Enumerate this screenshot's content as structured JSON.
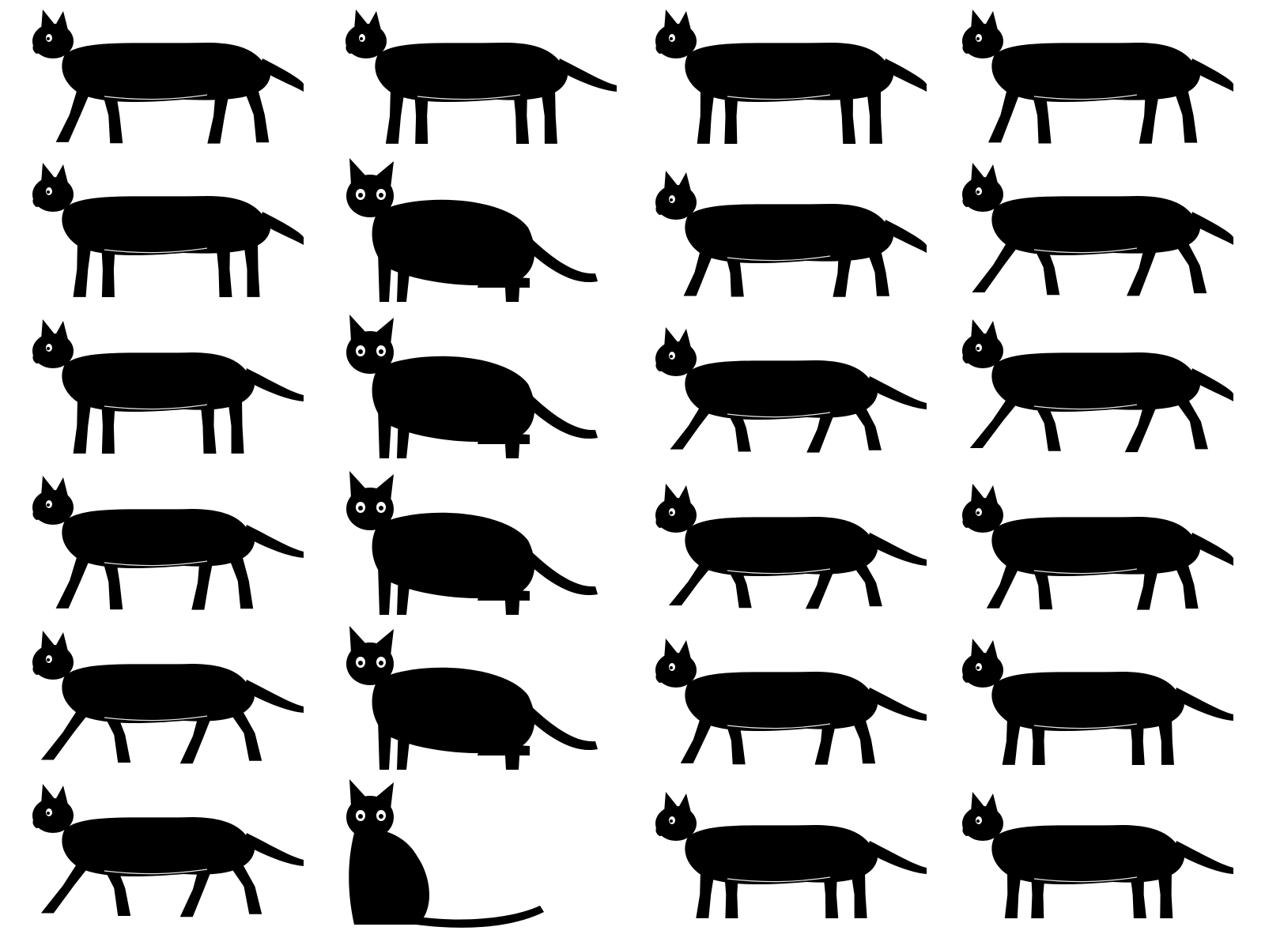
{
  "sheet": {
    "rows": 6,
    "columns": 4,
    "background": "#ffffff",
    "silhouette_color": "#000000",
    "highlight_color": "#ffffff"
  },
  "columns": [
    {
      "pose": "trot",
      "frames": 6
    },
    {
      "pose": "turn-toward-viewer-then-sit",
      "frames": 6
    },
    {
      "pose": "stalk-walk",
      "frames": 6
    },
    {
      "pose": "run-to-walk",
      "frames": 6
    }
  ]
}
